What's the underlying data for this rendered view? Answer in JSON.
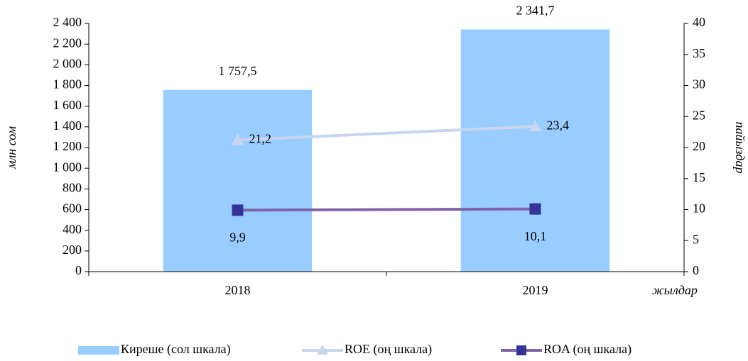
{
  "chart_data": {
    "type": "bar",
    "categories": [
      "2018",
      "2019"
    ],
    "y_label": "млн сом",
    "y2_label": "пайыздар",
    "x_label": "жылдар",
    "ylim": [
      0,
      2400
    ],
    "yticks": [
      0,
      200,
      400,
      600,
      800,
      {
        "value": 1000,
        "label": "1 000"
      },
      {
        "value": 1200,
        "label": "1 200"
      },
      {
        "value": 1400,
        "label": "1 400"
      },
      {
        "value": 1600,
        "label": "1 600"
      },
      {
        "value": 1800,
        "label": "1 800"
      },
      {
        "value": 2000,
        "label": "2 000"
      },
      {
        "value": 2200,
        "label": "2 200"
      },
      {
        "value": 2400,
        "label": "2 400"
      }
    ],
    "y2lim": [
      0,
      40
    ],
    "y2ticks": [
      0,
      5,
      10,
      15,
      20,
      25,
      30,
      35,
      40
    ],
    "legend": "bottom",
    "series": [
      {
        "name": "Киреше (сол шкала)",
        "type": "bar",
        "color": "#99ccff",
        "values": [
          1757.5,
          2341.7
        ],
        "value_labels": [
          "1 757,5",
          "2 341,7"
        ]
      },
      {
        "name": "ROE (оң шкала)",
        "type": "line",
        "axis": "y2",
        "marker": "triangle",
        "color": "#c9d5ee",
        "values": [
          21.2,
          23.4
        ],
        "value_labels": [
          "21,2",
          "23,4"
        ]
      },
      {
        "name": "ROA (оң шкала)",
        "type": "line",
        "axis": "y2",
        "marker": "square",
        "color": "#7f64a8",
        "marker_color": "#333399",
        "values": [
          9.9,
          10.1
        ],
        "value_labels": [
          "9,9",
          "10,1"
        ]
      }
    ]
  }
}
